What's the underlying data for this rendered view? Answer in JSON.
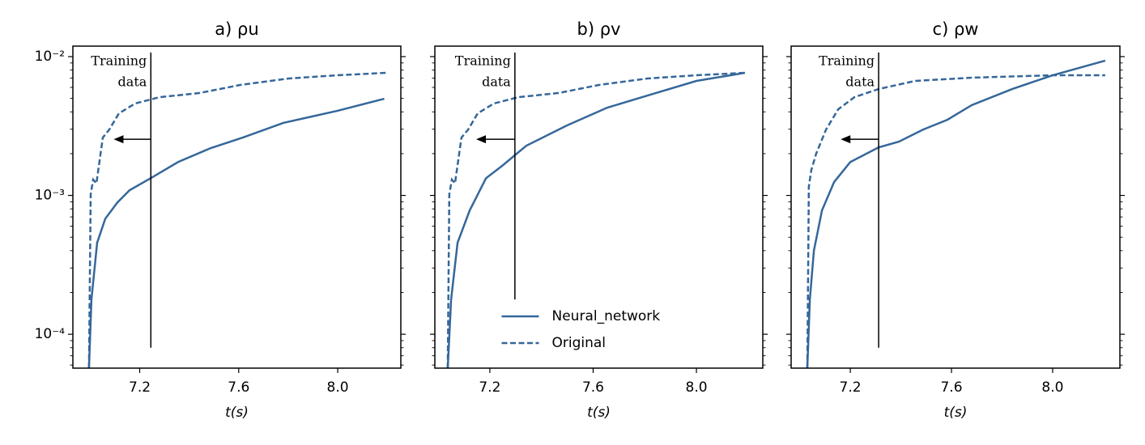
{
  "chart_data": [
    {
      "type": "line",
      "title": "a) ρu",
      "xlabel": "t(s)",
      "log_y": true,
      "xlim": [
        6.93,
        8.255
      ],
      "xticks": [
        7.2,
        7.6,
        {
          "value": 8,
          "label": "8.0"
        }
      ],
      "ylim": [
        5.7e-05,
        0.0119
      ],
      "yticks": [
        {
          "value": 0.01,
          "label": "10⁻²"
        },
        {
          "value": 0.001,
          "label": "10⁻³"
        },
        {
          "value": 0.0001,
          "label": "10⁻⁴"
        }
      ],
      "series": [
        {
          "name": "Neural_network",
          "color": "#35679a",
          "dash": false,
          "x": [
            6.995,
            7.005,
            7.028,
            7.061,
            7.11,
            7.159,
            7.244,
            7.355,
            7.486,
            7.616,
            7.78,
            7.999,
            8.188
          ],
          "values": [
            5.7e-05,
            0.000178,
            0.000456,
            0.00068,
            0.00089,
            0.00109,
            0.00133,
            0.00174,
            0.00219,
            0.00261,
            0.00333,
            0.00407,
            0.00497
          ]
        },
        {
          "name": "Original",
          "color": "#35679a",
          "dash": true,
          "x": [
            6.995,
            7.002,
            7.012,
            7.025,
            7.051,
            7.077,
            7.116,
            7.182,
            7.28,
            7.443,
            7.606,
            7.803,
            7.999,
            8.195
          ],
          "values": [
            5.7e-05,
            0.00102,
            0.0013,
            0.00122,
            0.00261,
            0.00298,
            0.0039,
            0.0046,
            0.0051,
            0.00547,
            0.00625,
            0.00696,
            0.00734,
            0.00764
          ]
        }
      ],
      "annotation": {
        "text": [
          "Training",
          "data"
        ],
        "x": 7.245,
        "y": [
          8e-05,
          0.0107
        ],
        "arrow_y": 0.00254,
        "arrow_to": 7.095
      }
    },
    {
      "type": "line",
      "title": "b) ρv",
      "xlabel": "t(s)",
      "log_y": true,
      "legend": "lower center",
      "xlim": [
        6.987,
        8.257
      ],
      "xticks": [
        7.2,
        7.6,
        {
          "value": 8,
          "label": "8.0"
        }
      ],
      "ylim": [
        5.7e-05,
        0.0119
      ],
      "yticks": [
        0.01,
        0.001,
        0.0001
      ],
      "series": [
        {
          "name": "Neural_network",
          "color": "#35679a",
          "dash": false,
          "x": [
            7.037,
            7.05,
            7.075,
            7.122,
            7.185,
            7.247,
            7.341,
            7.498,
            7.655,
            7.812,
            8.0,
            8.188
          ],
          "values": [
            5.7e-05,
            0.000178,
            0.000456,
            0.00078,
            0.00133,
            0.00163,
            0.00228,
            0.00319,
            0.00429,
            0.00525,
            0.00668,
            0.00764
          ]
        },
        {
          "name": "Original",
          "color": "#35679a",
          "dash": true,
          "x": [
            7.037,
            7.043,
            7.053,
            7.065,
            7.09,
            7.116,
            7.153,
            7.216,
            7.31,
            7.467,
            7.623,
            7.811,
            8.0,
            8.188
          ],
          "values": [
            5.7e-05,
            0.00102,
            0.0013,
            0.00122,
            0.00261,
            0.00298,
            0.0039,
            0.0046,
            0.0051,
            0.00547,
            0.00625,
            0.00696,
            0.00734,
            0.00764
          ]
        }
      ],
      "annotation": {
        "text": [
          "Training",
          "data"
        ],
        "x": 7.297,
        "y": [
          0.000178,
          0.0107
        ],
        "arrow_y": 0.00254,
        "arrow_to": 7.147
      }
    },
    {
      "type": "line",
      "title": "c) ρw",
      "xlabel": "t(s)",
      "log_y": true,
      "xlim": [
        6.966,
        8.266
      ],
      "xticks": [
        7.2,
        7.6,
        {
          "value": 8,
          "label": "8.0"
        }
      ],
      "ylim": [
        5.7e-05,
        0.0119
      ],
      "yticks": [
        0.01,
        0.001,
        0.0001
      ],
      "series": [
        {
          "name": "Neural_network",
          "color": "#35679a",
          "dash": false,
          "x": [
            7.03,
            7.04,
            7.056,
            7.088,
            7.136,
            7.2,
            7.312,
            7.392,
            7.488,
            7.584,
            7.68,
            7.84,
            8.0,
            8.208
          ],
          "values": [
            5.7e-05,
            0.000178,
            0.0004,
            0.00078,
            0.00125,
            0.00174,
            0.00222,
            0.00244,
            0.00298,
            0.00351,
            0.00447,
            0.00584,
            0.00734,
            0.00935
          ]
        },
        {
          "name": "Original",
          "color": "#35679a",
          "dash": true,
          "x": [
            7.03,
            7.036,
            7.046,
            7.065,
            7.104,
            7.152,
            7.216,
            7.312,
            7.456,
            7.68,
            8.0,
            8.208
          ],
          "values": [
            5.7e-05,
            0.00116,
            0.00153,
            0.002,
            0.00298,
            0.00417,
            0.0051,
            0.00584,
            0.00668,
            0.00705,
            0.00734,
            0.00734
          ]
        }
      ],
      "annotation": {
        "text": [
          "Training",
          "data"
        ],
        "x": 7.312,
        "y": [
          8e-05,
          0.0107
        ],
        "arrow_y": 0.00254,
        "arrow_to": 7.162
      }
    }
  ]
}
